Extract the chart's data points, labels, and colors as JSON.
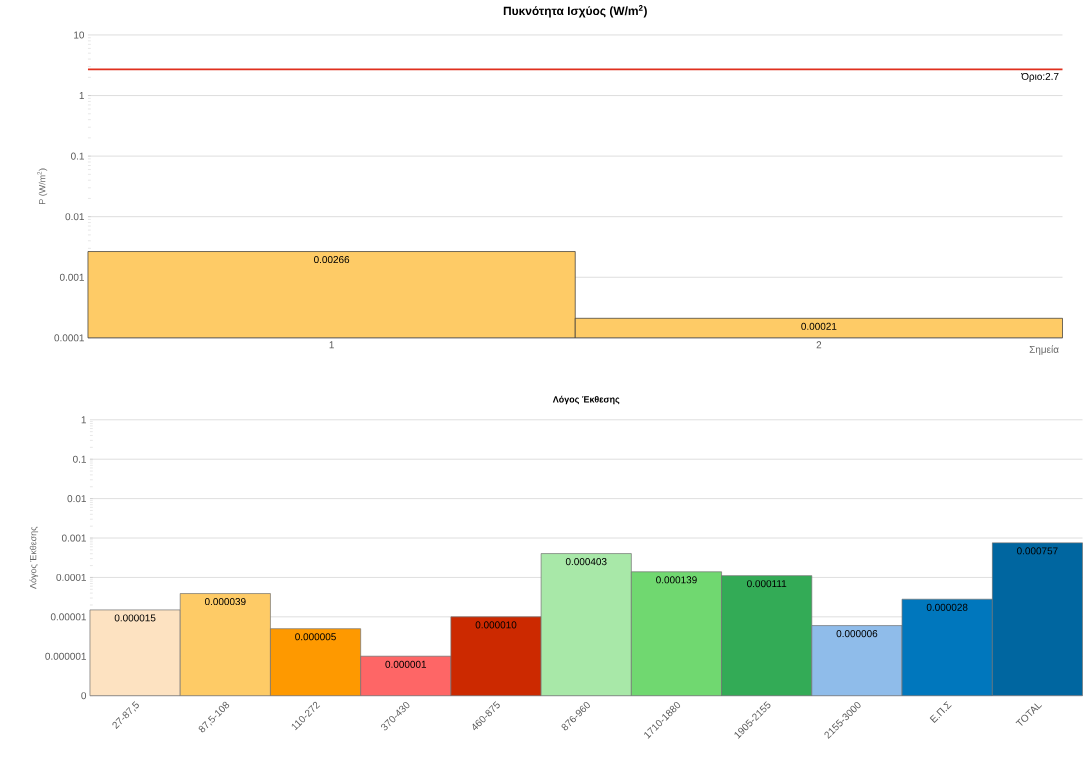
{
  "chart_data": [
    {
      "type": "bar",
      "title": "Πυκνότητα Ισχύος (W/m$^{2}$)",
      "xlabel": "Σημεία",
      "ylabel": "P (W/m$^{2}$)",
      "categories": [
        "1",
        "2"
      ],
      "values": [
        0.00266,
        0.00021
      ],
      "value_labels": [
        "0.00266",
        "0.00021"
      ],
      "color": "#fecb66",
      "log": true,
      "ylim": [
        0.0001,
        10
      ],
      "yticks": [
        0.0001,
        0.001,
        0.01,
        0.1,
        1,
        10
      ],
      "grid": "y",
      "ref_lines": [
        {
          "axis": "y",
          "value": 2.7,
          "label": "Όριο:2.7",
          "color": "#e0301e"
        }
      ]
    },
    {
      "type": "bar",
      "title": "Λόγος Έκθεσης",
      "ylabel": "Λόγος Έκθεσης",
      "categories": [
        "27-87,5",
        "87,5-108",
        "110-272",
        "370-430",
        "460-875",
        "876-960",
        "1710-1880",
        "1905-2155",
        "2155-3000",
        "Ε.Π.Σ",
        "TOTAL"
      ],
      "values": [
        1.5e-05,
        3.9e-05,
        5e-06,
        1e-06,
        1e-05,
        0.000403,
        0.000139,
        0.000111,
        6e-06,
        2.8e-05,
        0.000757
      ],
      "value_labels": [
        "0.000015",
        "0.000039",
        "0.000005",
        "0.000001",
        "0.000010",
        "0.000403",
        "0.000139",
        "0.000111",
        "0.000006",
        "0.000028",
        "0.000757"
      ],
      "colors": [
        "#fde2c1",
        "#fecb66",
        "#fe9900",
        "#fe6666",
        "#cc2900",
        "#a8e8a8",
        "#70d870",
        "#33ab56",
        "#8fbcea",
        "#0077bd",
        "#0066a0"
      ],
      "log": true,
      "ylim": [
        1e-07,
        1
      ],
      "yticks": [
        {
          "value": 1e-07,
          "label": "0"
        },
        {
          "value": 1e-06,
          "label": "0.000001"
        },
        {
          "value": 1e-05,
          "label": "0.00001"
        },
        0.0001,
        0.001,
        0.01,
        0.1,
        1
      ],
      "grid": "y"
    }
  ]
}
